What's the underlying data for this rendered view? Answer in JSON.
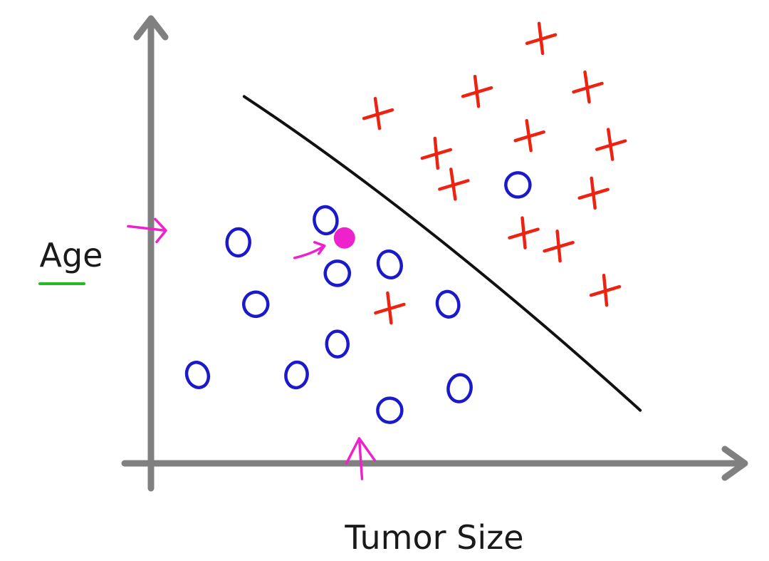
{
  "chart_data": {
    "type": "scatter",
    "title": "",
    "xlabel": "Tumor Size",
    "ylabel": "Age",
    "xlim": [
      0,
      10
    ],
    "ylim": [
      0,
      10
    ],
    "grid": false,
    "legend": "none",
    "series": [
      {
        "marker": "o",
        "color": "#1a1acc",
        "points": [
          [
            0.8,
            2.0
          ],
          [
            1.5,
            5.0
          ],
          [
            1.8,
            3.6
          ],
          [
            2.5,
            2.0
          ],
          [
            3.0,
            5.5
          ],
          [
            3.2,
            4.3
          ],
          [
            3.2,
            2.7
          ],
          [
            4.1,
            4.5
          ],
          [
            4.1,
            1.2
          ],
          [
            5.1,
            3.6
          ],
          [
            5.3,
            1.7
          ],
          [
            6.3,
            6.3
          ]
        ]
      },
      {
        "marker": "x",
        "color": "#ee2211",
        "points": [
          [
            3.9,
            7.9
          ],
          [
            4.1,
            3.5
          ],
          [
            4.9,
            7.0
          ],
          [
            5.2,
            6.3
          ],
          [
            5.6,
            8.4
          ],
          [
            6.4,
            5.2
          ],
          [
            6.5,
            7.4
          ],
          [
            6.7,
            9.6
          ],
          [
            7.0,
            4.9
          ],
          [
            7.5,
            8.5
          ],
          [
            7.6,
            6.1
          ],
          [
            7.8,
            3.9
          ],
          [
            7.9,
            7.2
          ]
        ]
      }
    ],
    "highlight_point": {
      "x": 3.2,
      "y": 5.1,
      "color": "#ee22cc"
    },
    "decision_boundary": {
      "color": "#111111",
      "points": [
        [
          1.6,
          8.3
        ],
        [
          8.4,
          1.2
        ]
      ]
    },
    "markers": {
      "y_axis_arrow": {
        "value": 5.3,
        "color": "#ee22cc"
      },
      "x_axis_arrow": {
        "value": 3.6,
        "color": "#ee22cc"
      },
      "point_arrow_color": "#ee22cc"
    },
    "ylabel_underline_color": "#22bb22",
    "axis_color": "#808080"
  }
}
